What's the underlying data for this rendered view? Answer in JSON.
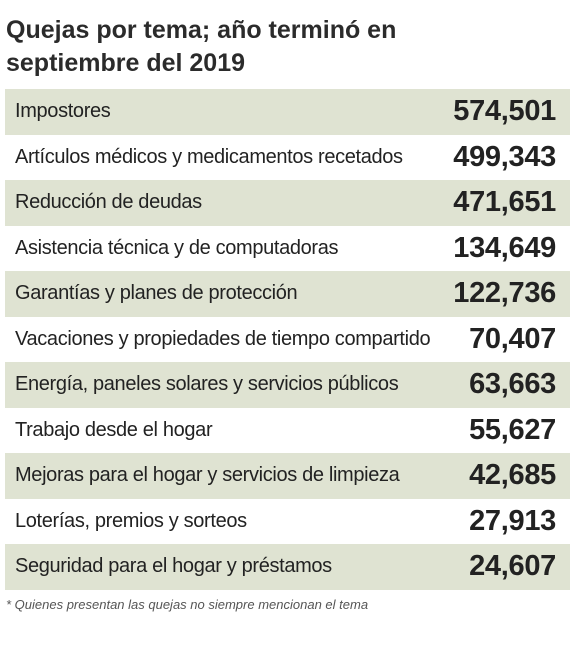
{
  "chart_data": {
    "type": "table",
    "title": "Quejas por tema; año terminó en septiembre del 2019",
    "rows": [
      {
        "label": "Impostores",
        "value": "574,501"
      },
      {
        "label": "Artículos médicos y medicamentos recetados",
        "value": "499,343"
      },
      {
        "label": "Reducción de deudas",
        "value": "471,651"
      },
      {
        "label": "Asistencia técnica y de computadoras",
        "value": "134,649"
      },
      {
        "label": "Garantías y planes de protección",
        "value": "122,736"
      },
      {
        "label": "Vacaciones y propiedades de tiempo compartido",
        "value": "70,407"
      },
      {
        "label": "Energía, paneles solares y servicios públicos",
        "value": "63,663"
      },
      {
        "label": "Trabajo desde el hogar",
        "value": "55,627"
      },
      {
        "label": "Mejoras para el hogar y servicios de limpieza",
        "value": "42,685"
      },
      {
        "label": "Loterías, premios y sorteos",
        "value": "27,913"
      },
      {
        "label": "Seguridad para el hogar y préstamos",
        "value": "24,607"
      }
    ],
    "footnote": "* Quienes presentan las quejas no siempre mencionan el tema"
  },
  "colors": {
    "row_shade": "#dfe3d2",
    "text": "#222222",
    "footnote": "#555555"
  }
}
